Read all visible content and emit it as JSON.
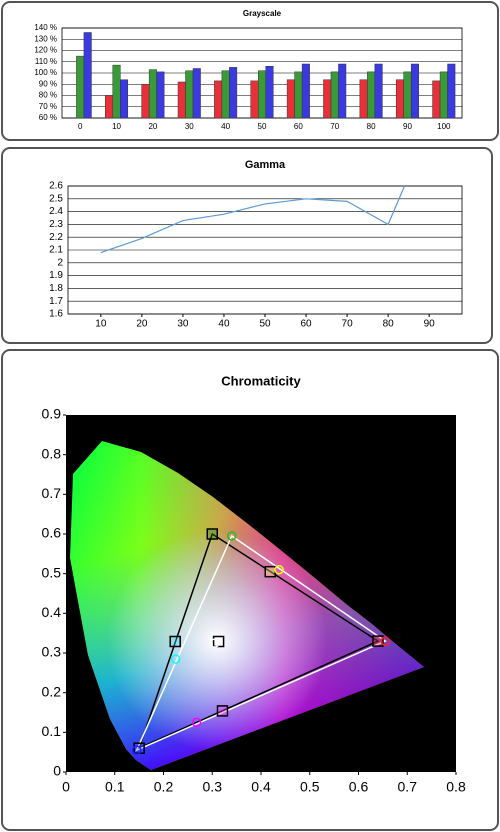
{
  "chart_data": [
    {
      "type": "bar",
      "title": "Grayscale",
      "categories": [
        "0",
        "10",
        "20",
        "30",
        "40",
        "50",
        "60",
        "70",
        "80",
        "90",
        "100"
      ],
      "series": [
        {
          "color": "#e8303a",
          "values": [
            null,
            80,
            90,
            92,
            93,
            93,
            94,
            94,
            94,
            94,
            93
          ]
        },
        {
          "color": "#3a9a3a",
          "values": [
            115,
            107,
            103,
            102,
            102,
            102,
            101,
            101,
            101,
            101,
            101
          ]
        },
        {
          "color": "#3a3ae0",
          "values": [
            136,
            94,
            101,
            104,
            105,
            106,
            108,
            108,
            108,
            108,
            108
          ]
        }
      ],
      "ylim": [
        60,
        140
      ],
      "yticks": [
        {
          "value": 60,
          "label": "60 %"
        },
        {
          "value": 70,
          "label": "70 %"
        },
        {
          "value": 80,
          "label": "80 %"
        },
        {
          "value": 90,
          "label": "90 %"
        },
        {
          "value": 100,
          "label": "100 %"
        },
        {
          "value": 110,
          "label": "110 %"
        },
        {
          "value": 120,
          "label": "120 %"
        },
        {
          "value": 130,
          "label": "130 %"
        },
        {
          "value": 140,
          "label": "140 %"
        }
      ],
      "grid": true
    },
    {
      "type": "line",
      "title": "Gamma",
      "x": [
        10,
        20,
        30,
        40,
        50,
        60,
        70,
        80,
        84
      ],
      "series": [
        {
          "color": "#5b9bd5",
          "values": [
            2.08,
            2.19,
            2.33,
            2.38,
            2.46,
            2.5,
            2.48,
            2.3,
            2.6
          ]
        }
      ],
      "xlim": [
        2,
        98
      ],
      "xticks": [
        10,
        20,
        30,
        40,
        50,
        60,
        70,
        80,
        90
      ],
      "ylim": [
        1.6,
        2.6
      ],
      "yticks": [
        1.6,
        1.7,
        1.8,
        1.9,
        2,
        2.1,
        2.2,
        2.3,
        2.4,
        2.5,
        2.6
      ],
      "grid": true
    },
    {
      "type": "scatter",
      "title": "Chromaticity",
      "plot_background": "#000000",
      "series": [
        {
          "marker": "square",
          "connect": true,
          "color": "#000000",
          "colors": [
            "#ff4040",
            "#1f7a1f",
            "#4060ff"
          ],
          "x": [
            0.64,
            0.3,
            0.15
          ],
          "y": [
            0.33,
            0.6,
            0.06
          ]
        },
        {
          "marker": "square",
          "connect": false,
          "color": "#000000",
          "colors": [
            "#ffff60",
            "#40e0ff",
            "#ff40ff",
            "#ffffff"
          ],
          "x": [
            0.419,
            0.224,
            0.321,
            0.313
          ],
          "y": [
            0.505,
            0.329,
            0.154,
            0.329
          ]
        },
        {
          "marker": "circle",
          "connect": true,
          "color": "#ffffff",
          "colors": [
            "#ff2020",
            "#20c020",
            "#2020ff"
          ],
          "x": [
            0.655,
            0.34,
            0.145
          ],
          "y": [
            0.33,
            0.595,
            0.055
          ]
        },
        {
          "marker": "circle",
          "connect": false,
          "color": "#ffffff",
          "colors": [
            "#ffff00",
            "#00ffff",
            "#ff00ff",
            "#ffffff"
          ],
          "x": [
            0.437,
            0.225,
            0.268,
            0.305
          ],
          "y": [
            0.51,
            0.285,
            0.125,
            0.325
          ]
        }
      ],
      "xlim": [
        0,
        0.8
      ],
      "xticks": [
        0,
        0.1,
        0.2,
        0.3,
        0.4,
        0.5,
        0.6,
        0.7,
        0.8
      ],
      "ylim": [
        0,
        0.9
      ],
      "yticks": [
        0,
        0.1,
        0.2,
        0.3,
        0.4,
        0.5,
        0.6,
        0.7,
        0.8,
        0.9
      ]
    }
  ]
}
